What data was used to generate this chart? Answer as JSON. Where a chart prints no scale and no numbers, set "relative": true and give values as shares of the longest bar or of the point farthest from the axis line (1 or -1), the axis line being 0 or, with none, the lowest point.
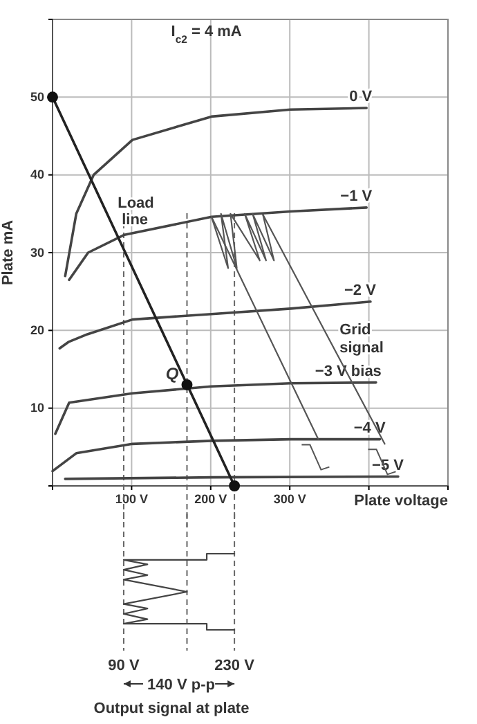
{
  "chart_data": [
    {
      "type": "line",
      "xlabel": "Plate voltage",
      "ylabel": "Plate mA",
      "xlim": [
        0,
        500
      ],
      "ylim": [
        0,
        60
      ],
      "xticks": [
        {
          "value": 0,
          "label": null
        },
        {
          "value": 100,
          "label": "100 V"
        },
        {
          "value": 200,
          "label": "200 V"
        },
        {
          "value": 300,
          "label": "300 V"
        },
        {
          "value": 400,
          "label": null
        },
        {
          "value": 500,
          "label": null
        }
      ],
      "yticks": [
        {
          "value": 0,
          "label": null
        },
        {
          "value": 10,
          "label": "10"
        },
        {
          "value": 20,
          "label": "20"
        },
        {
          "value": 30,
          "label": "30"
        },
        {
          "value": 40,
          "label": "40"
        },
        {
          "value": 50,
          "label": "50"
        },
        {
          "value": 60,
          "label": null
        }
      ],
      "grid": true,
      "line_style": "solid",
      "marker": "none",
      "series": [
        {
          "name": "0 V",
          "color": "#444444",
          "x": [
            16,
            30,
            52,
            101,
            201,
            301,
            397
          ],
          "values": [
            27,
            35,
            40,
            44.5,
            47.5,
            48.4,
            48.6
          ]
        },
        {
          "name": "−1 V",
          "color": "#444444",
          "x": [
            21,
            45,
            91,
            201,
            301,
            397
          ],
          "values": [
            26.5,
            30,
            32.3,
            34.6,
            35.3,
            35.8
          ]
        },
        {
          "name": "−2 V",
          "color": "#444444",
          "x": [
            9,
            20,
            44,
            101,
            201,
            301,
            402
          ],
          "values": [
            17.7,
            18.5,
            19.5,
            21.4,
            22.1,
            22.8,
            23.7
          ]
        },
        {
          "name": "−3 V bias",
          "color": "#444444",
          "x": [
            3.5,
            21,
            101,
            201,
            301,
            409
          ],
          "values": [
            6.7,
            10.7,
            11.9,
            12.8,
            13.2,
            13.3
          ]
        },
        {
          "name": "−4 V",
          "color": "#444444",
          "x": [
            0,
            30,
            101,
            201,
            301,
            414
          ],
          "values": [
            1.9,
            4.2,
            5.4,
            5.8,
            6.0,
            6.0
          ]
        },
        {
          "name": "−5 V",
          "color": "#444444",
          "x": [
            16,
            201,
            437
          ],
          "values": [
            0.9,
            1.1,
            1.2
          ]
        },
        {
          "name": "Load line",
          "color": "#222222",
          "x": [
            0,
            230
          ],
          "values": [
            50,
            0
          ]
        },
        {
          "color": "#555555",
          "x": [
            201,
            222,
            213,
            233,
            225,
            262,
            243,
            270,
            253,
            280,
            266
          ],
          "values": [
            34.6,
            28,
            35,
            28,
            35,
            29,
            35,
            29,
            35,
            29,
            34.9
          ]
        },
        {
          "color": "#555555",
          "x": [
            201,
            336
          ],
          "values": [
            34.6,
            6.0
          ]
        },
        {
          "color": "#555555",
          "x": [
            266,
            420
          ],
          "values": [
            34.9,
            5.4
          ]
        },
        {
          "type": "scatter",
          "marker": "circle",
          "color": "#111111",
          "x": [
            0,
            170,
            230
          ],
          "values": [
            50,
            13,
            0
          ]
        }
      ],
      "ref_lines": [
        {
          "axis": "x",
          "value": 90,
          "line_style": "dashed",
          "color": "#666666"
        },
        {
          "axis": "x",
          "value": 170,
          "line_style": "dashed",
          "color": "#666666"
        },
        {
          "axis": "x",
          "value": 230,
          "line_style": "dashed",
          "color": "#666666"
        }
      ],
      "annotations": [
        "I$_{c2}$ = 4 mA",
        {
          "text": "Q",
          "x": 170,
          "y": 13
        },
        {
          "text": "Grid signal",
          "x": 349,
          "y": 19
        }
      ]
    },
    {
      "type": "line",
      "relative": true,
      "line_style": "solid",
      "marker": "none",
      "xlim": [
        90,
        230
      ],
      "xticks": [
        {
          "value": 90,
          "label": "90 V"
        },
        {
          "value": 230,
          "label": "230 V"
        }
      ],
      "series": [
        {
          "color": "#444444",
          "x": [
            230,
            195,
            195,
            90,
            120,
            90,
            120,
            90,
            170,
            90,
            120,
            90,
            120,
            90,
            195,
            195,
            230
          ],
          "values": [
            1,
            1,
            0.92,
            0.92,
            0.86,
            0.79,
            0.72,
            0.66,
            0.5,
            0.34,
            0.28,
            0.21,
            0.14,
            0.08,
            0.08,
            0,
            0
          ]
        }
      ],
      "ref_lines": [
        {
          "axis": "x",
          "value": 90,
          "line_style": "dashed",
          "color": "#666666"
        },
        {
          "axis": "x",
          "value": 170,
          "line_style": "dashed",
          "color": "#666666"
        },
        {
          "axis": "x",
          "value": 230,
          "line_style": "dashed",
          "color": "#666666"
        }
      ],
      "annotations": [
        "140 V p-p",
        "Output signal at plate"
      ]
    }
  ]
}
